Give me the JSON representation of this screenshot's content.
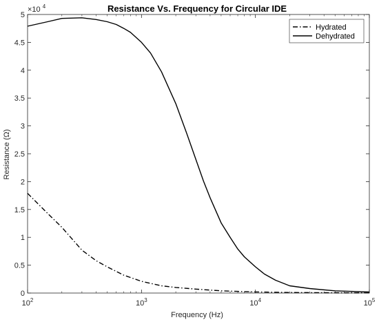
{
  "chart_data": {
    "type": "line",
    "title": "Resistance Vs. Frequency for Circular IDE",
    "xlabel": "Frequency (Hz)",
    "ylabel": "Resistance (Ω)",
    "x_scale": "log",
    "xlim": [
      100,
      100000
    ],
    "ylim": [
      0,
      50000
    ],
    "y_multiplier_label": "×10",
    "y_multiplier_exponent": "4",
    "x_ticks": [
      {
        "value": 100,
        "base": "10",
        "exp": "2"
      },
      {
        "value": 1000,
        "base": "10",
        "exp": "3"
      },
      {
        "value": 10000,
        "base": "10",
        "exp": "4"
      },
      {
        "value": 100000,
        "base": "10",
        "exp": "5"
      }
    ],
    "y_ticks": [
      {
        "value": 0,
        "label": "0"
      },
      {
        "value": 5000,
        "label": "0.5"
      },
      {
        "value": 10000,
        "label": "1"
      },
      {
        "value": 15000,
        "label": "1.5"
      },
      {
        "value": 20000,
        "label": "2"
      },
      {
        "value": 25000,
        "label": "2.5"
      },
      {
        "value": 30000,
        "label": "3"
      },
      {
        "value": 35000,
        "label": "3.5"
      },
      {
        "value": 40000,
        "label": "4"
      },
      {
        "value": 45000,
        "label": "4.5"
      },
      {
        "value": 50000,
        "label": "5"
      }
    ],
    "grid": false,
    "legend_position": "top-right",
    "series": [
      {
        "name": "Hydrated",
        "line_style": "dash-dot",
        "color": "#000000",
        "x": [
          100,
          150,
          200,
          300,
          400,
          500,
          700,
          1000,
          1500,
          2000,
          3000,
          5000,
          7000,
          10000,
          20000,
          50000,
          100000
        ],
        "y": [
          17900,
          14300,
          11800,
          7700,
          5800,
          4700,
          3200,
          2100,
          1300,
          1000,
          700,
          400,
          300,
          200,
          100,
          50,
          20
        ]
      },
      {
        "name": "Dehydrated",
        "line_style": "solid",
        "color": "#000000",
        "x": [
          100,
          150,
          200,
          300,
          400,
          500,
          600,
          700,
          800,
          1000,
          1200,
          1500,
          2000,
          2500,
          3000,
          3500,
          4000,
          5000,
          6000,
          7000,
          8000,
          10000,
          12000,
          15000,
          20000,
          30000,
          50000,
          70000,
          100000
        ],
        "y": [
          47900,
          48700,
          49300,
          49400,
          49100,
          48700,
          48200,
          47500,
          46800,
          45000,
          43100,
          39700,
          34000,
          28600,
          24000,
          20100,
          17100,
          12600,
          10000,
          7900,
          6500,
          4700,
          3400,
          2300,
          1300,
          800,
          400,
          300,
          200
        ]
      }
    ]
  }
}
